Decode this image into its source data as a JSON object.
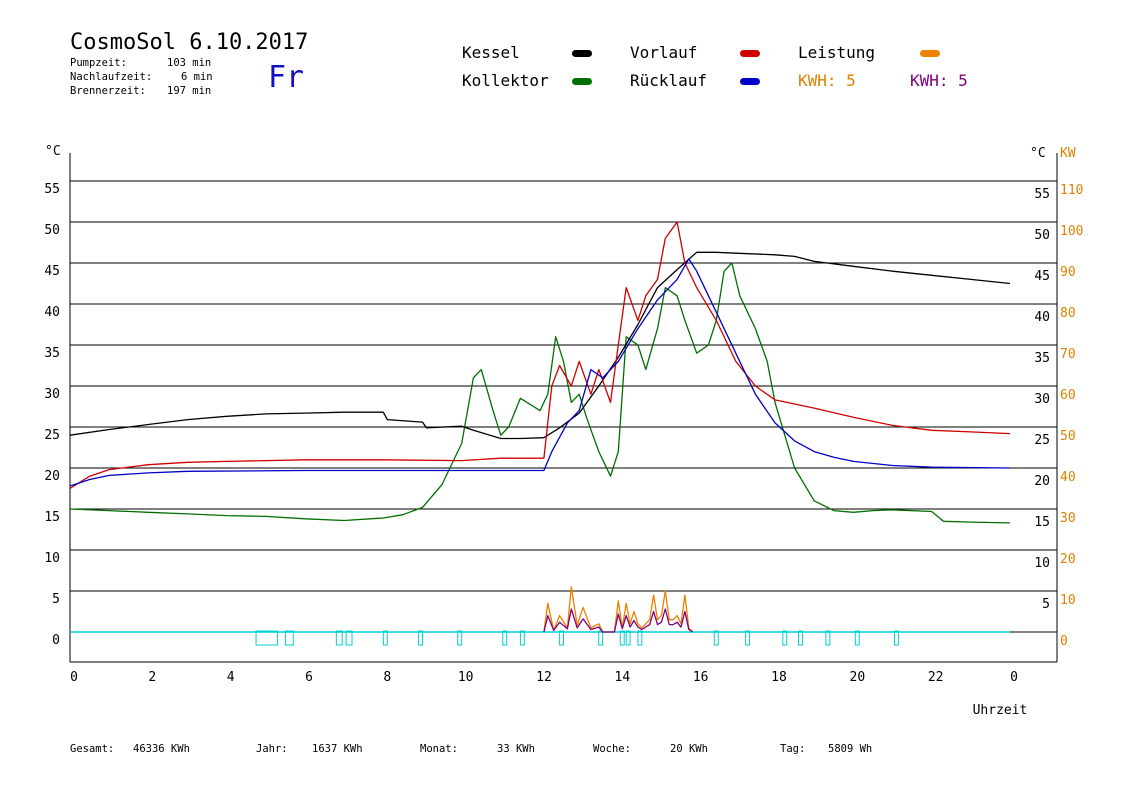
{
  "header": {
    "title": "CosmoSol 6.10.2017",
    "day": "Fr",
    "stats": [
      {
        "label": "Pumpzeit:",
        "value": "103 min"
      },
      {
        "label": "Nachlaufzeit:",
        "value": "6 min"
      },
      {
        "label": "Brennerzeit:",
        "value": "197 min"
      }
    ]
  },
  "legend": {
    "kessel": "Kessel",
    "kollektor": "Kollektor",
    "vorlauf": "Vorlauf",
    "ruecklauf": "Rücklauf",
    "leistung": "Leistung",
    "kwh1": "KWH: 5",
    "kwh2": "KWH: 5"
  },
  "colors": {
    "kessel": "#000000",
    "kollektor": "#007000",
    "vorlauf": "#d00000",
    "ruecklauf": "#0000c8",
    "leistung": "#f08000",
    "kwh2": "#800080",
    "pump": "#00d0d0",
    "kw_axis": "#e08000"
  },
  "footer": {
    "gesamt_label": "Gesamt:",
    "gesamt_value": "46336 KWh",
    "jahr_label": "Jahr:",
    "jahr_value": "1637 KWh",
    "monat_label": "Monat:",
    "monat_value": "33 KWh",
    "woche_label": "Woche:",
    "woche_value": "20 KWh",
    "tag_label": "Tag:",
    "tag_value": "5809 Wh"
  },
  "chart_data": {
    "type": "line",
    "xlabel": "Uhrzeit",
    "ylabel_left": "°C",
    "ylabel_right": "°C",
    "ylabel_right2": "KW",
    "x_ticks": [
      "0",
      "2",
      "4",
      "6",
      "8",
      "10",
      "12",
      "14",
      "16",
      "18",
      "20",
      "22",
      "0"
    ],
    "y_ticks_left": [
      "0",
      "5",
      "10",
      "15",
      "20",
      "25",
      "30",
      "35",
      "40",
      "45",
      "50",
      "55"
    ],
    "y_ticks_right": [
      "5",
      "10",
      "15",
      "20",
      "25",
      "30",
      "35",
      "40",
      "45",
      "50",
      "55"
    ],
    "y_ticks_kw": [
      "0",
      "10",
      "20",
      "30",
      "40",
      "50",
      "60",
      "70",
      "80",
      "90",
      "100",
      "110"
    ],
    "xlim": [
      0,
      24
    ],
    "ylim": [
      -4,
      58
    ],
    "grid": true,
    "series": [
      {
        "name": "Kessel",
        "color": "#000000",
        "points": [
          [
            0,
            24
          ],
          [
            1,
            24.7
          ],
          [
            2,
            25.3
          ],
          [
            3,
            25.9
          ],
          [
            4,
            26.3
          ],
          [
            5,
            26.6
          ],
          [
            6,
            26.7
          ],
          [
            7,
            26.8
          ],
          [
            8,
            26.8
          ],
          [
            8.1,
            25.9
          ],
          [
            9,
            25.6
          ],
          [
            9.1,
            24.9
          ],
          [
            10,
            25.1
          ],
          [
            10.3,
            24.6
          ],
          [
            11,
            23.6
          ],
          [
            11.5,
            23.6
          ],
          [
            12.1,
            23.7
          ],
          [
            12.5,
            24.9
          ],
          [
            13,
            26.7
          ],
          [
            13.5,
            30
          ],
          [
            14,
            33.5
          ],
          [
            14.5,
            37.5
          ],
          [
            15,
            42
          ],
          [
            15.5,
            44.2
          ],
          [
            16,
            46.3
          ],
          [
            16.5,
            46.3
          ],
          [
            17,
            46.2
          ],
          [
            18,
            46
          ],
          [
            18.5,
            45.8
          ],
          [
            19,
            45.2
          ],
          [
            20,
            44.6
          ],
          [
            21,
            44
          ],
          [
            22,
            43.5
          ],
          [
            23,
            43
          ],
          [
            24,
            42.5
          ]
        ]
      },
      {
        "name": "Vorlauf",
        "color": "#d00000",
        "points": [
          [
            0,
            17.5
          ],
          [
            0.5,
            19
          ],
          [
            1,
            19.8
          ],
          [
            2,
            20.4
          ],
          [
            3,
            20.7
          ],
          [
            4,
            20.8
          ],
          [
            6,
            21
          ],
          [
            8,
            21
          ],
          [
            10,
            20.9
          ],
          [
            11,
            21.2
          ],
          [
            12.1,
            21.2
          ],
          [
            12.3,
            30
          ],
          [
            12.5,
            32.5
          ],
          [
            12.8,
            30
          ],
          [
            13,
            33
          ],
          [
            13.3,
            29
          ],
          [
            13.5,
            32
          ],
          [
            13.8,
            28
          ],
          [
            14,
            35
          ],
          [
            14.2,
            42
          ],
          [
            14.5,
            38
          ],
          [
            14.7,
            41
          ],
          [
            15,
            43
          ],
          [
            15.2,
            48
          ],
          [
            15.5,
            50
          ],
          [
            15.7,
            45
          ],
          [
            16,
            42
          ],
          [
            16.5,
            38
          ],
          [
            17,
            33
          ],
          [
            17.5,
            30
          ],
          [
            18,
            28.3
          ],
          [
            19,
            27.3
          ],
          [
            20,
            26.2
          ],
          [
            21,
            25.2
          ],
          [
            22,
            24.6
          ],
          [
            23,
            24.4
          ],
          [
            24,
            24.2
          ]
        ]
      },
      {
        "name": "Rücklauf",
        "color": "#0000c8",
        "points": [
          [
            0,
            17.8
          ],
          [
            0.5,
            18.6
          ],
          [
            1,
            19.1
          ],
          [
            2,
            19.4
          ],
          [
            3,
            19.6
          ],
          [
            6,
            19.7
          ],
          [
            9,
            19.7
          ],
          [
            12.1,
            19.7
          ],
          [
            12.3,
            22
          ],
          [
            12.7,
            25.5
          ],
          [
            13,
            27
          ],
          [
            13.3,
            32
          ],
          [
            13.6,
            31
          ],
          [
            14,
            33
          ],
          [
            14.5,
            37
          ],
          [
            15,
            40.5
          ],
          [
            15.5,
            43
          ],
          [
            15.8,
            45.5
          ],
          [
            16,
            44
          ],
          [
            16.5,
            39
          ],
          [
            17,
            34
          ],
          [
            17.5,
            29
          ],
          [
            18,
            25.5
          ],
          [
            18.5,
            23.3
          ],
          [
            19,
            22
          ],
          [
            19.5,
            21.3
          ],
          [
            20,
            20.8
          ],
          [
            21,
            20.3
          ],
          [
            22,
            20.1
          ],
          [
            24,
            20
          ]
        ]
      },
      {
        "name": "Kollektor",
        "color": "#007000",
        "points": [
          [
            0,
            15
          ],
          [
            1,
            14.8
          ],
          [
            2,
            14.6
          ],
          [
            3,
            14.4
          ],
          [
            4,
            14.2
          ],
          [
            5,
            14.1
          ],
          [
            6,
            13.8
          ],
          [
            7,
            13.6
          ],
          [
            8,
            13.9
          ],
          [
            8.5,
            14.3
          ],
          [
            9,
            15.2
          ],
          [
            9.5,
            18
          ],
          [
            10,
            23
          ],
          [
            10.3,
            31
          ],
          [
            10.5,
            32
          ],
          [
            10.8,
            27
          ],
          [
            11,
            24
          ],
          [
            11.2,
            25
          ],
          [
            11.5,
            28.5
          ],
          [
            12,
            27
          ],
          [
            12.2,
            29
          ],
          [
            12.4,
            36
          ],
          [
            12.6,
            33
          ],
          [
            12.8,
            28
          ],
          [
            13,
            29
          ],
          [
            13.2,
            26
          ],
          [
            13.5,
            22
          ],
          [
            13.8,
            19
          ],
          [
            14,
            22
          ],
          [
            14.2,
            36
          ],
          [
            14.5,
            35
          ],
          [
            14.7,
            32
          ],
          [
            15,
            37
          ],
          [
            15.2,
            42
          ],
          [
            15.5,
            41
          ],
          [
            15.7,
            38
          ],
          [
            16,
            34
          ],
          [
            16.3,
            35
          ],
          [
            16.5,
            38
          ],
          [
            16.7,
            44
          ],
          [
            16.9,
            45
          ],
          [
            17.1,
            41
          ],
          [
            17.3,
            39
          ],
          [
            17.5,
            37
          ],
          [
            17.8,
            33
          ],
          [
            18,
            28
          ],
          [
            18.5,
            20
          ],
          [
            19,
            16
          ],
          [
            19.5,
            14.8
          ],
          [
            20,
            14.6
          ],
          [
            20.5,
            14.8
          ],
          [
            21,
            14.9
          ],
          [
            22,
            14.7
          ],
          [
            22.3,
            13.5
          ],
          [
            23,
            13.4
          ],
          [
            24,
            13.3
          ]
        ]
      },
      {
        "name": "Leistung",
        "color": "#f08000",
        "points": [
          [
            12.1,
            0
          ],
          [
            12.2,
            3.5
          ],
          [
            12.35,
            0.2
          ],
          [
            12.5,
            2
          ],
          [
            12.7,
            0.5
          ],
          [
            12.8,
            5.5
          ],
          [
            12.95,
            0.8
          ],
          [
            13.1,
            3
          ],
          [
            13.3,
            0.5
          ],
          [
            13.5,
            1
          ],
          [
            13.6,
            0
          ],
          [
            13.9,
            0
          ],
          [
            14,
            3.8
          ],
          [
            14.1,
            0.5
          ],
          [
            14.2,
            3.5
          ],
          [
            14.3,
            1
          ],
          [
            14.4,
            2.5
          ],
          [
            14.5,
            1
          ],
          [
            14.6,
            0.5
          ],
          [
            14.8,
            1.5
          ],
          [
            14.9,
            4.5
          ],
          [
            15,
            1.5
          ],
          [
            15.1,
            2
          ],
          [
            15.2,
            5
          ],
          [
            15.3,
            1.5
          ],
          [
            15.4,
            1.5
          ],
          [
            15.5,
            2
          ],
          [
            15.6,
            1
          ],
          [
            15.7,
            4.5
          ],
          [
            15.8,
            0.5
          ],
          [
            15.9,
            0
          ]
        ]
      },
      {
        "name": "KWH",
        "color": "#800080",
        "points": [
          [
            12.1,
            0
          ],
          [
            12.2,
            2
          ],
          [
            12.35,
            0.2
          ],
          [
            12.5,
            1.2
          ],
          [
            12.7,
            0.4
          ],
          [
            12.8,
            2.8
          ],
          [
            12.95,
            0.5
          ],
          [
            13.1,
            1.6
          ],
          [
            13.3,
            0.3
          ],
          [
            13.5,
            0.6
          ],
          [
            13.6,
            0
          ],
          [
            13.9,
            0
          ],
          [
            14,
            2.2
          ],
          [
            14.1,
            0.4
          ],
          [
            14.2,
            2
          ],
          [
            14.3,
            0.6
          ],
          [
            14.4,
            1.4
          ],
          [
            14.5,
            0.6
          ],
          [
            14.6,
            0.3
          ],
          [
            14.8,
            0.9
          ],
          [
            14.9,
            2.5
          ],
          [
            15,
            0.9
          ],
          [
            15.1,
            1.2
          ],
          [
            15.2,
            2.8
          ],
          [
            15.3,
            0.9
          ],
          [
            15.4,
            0.9
          ],
          [
            15.5,
            1.2
          ],
          [
            15.6,
            0.6
          ],
          [
            15.7,
            2.5
          ],
          [
            15.8,
            0.3
          ],
          [
            15.9,
            0
          ]
        ]
      }
    ],
    "pump_pulses": [
      [
        4.75,
        5.3
      ],
      [
        5.5,
        5.7
      ],
      [
        6.8,
        6.95
      ],
      [
        7.05,
        7.2
      ],
      [
        8.0,
        8.1
      ],
      [
        8.9,
        9.0
      ],
      [
        9.9,
        10.0
      ],
      [
        11.05,
        11.15
      ],
      [
        11.5,
        11.6
      ],
      [
        12.5,
        12.6
      ],
      [
        13.5,
        13.6
      ],
      [
        14.05,
        14.15
      ],
      [
        14.2,
        14.3
      ],
      [
        14.5,
        14.6
      ],
      [
        16.45,
        16.55
      ],
      [
        17.25,
        17.35
      ],
      [
        18.2,
        18.3
      ],
      [
        18.6,
        18.7
      ],
      [
        19.3,
        19.4
      ],
      [
        20.05,
        20.15
      ],
      [
        21.05,
        21.15
      ]
    ]
  }
}
